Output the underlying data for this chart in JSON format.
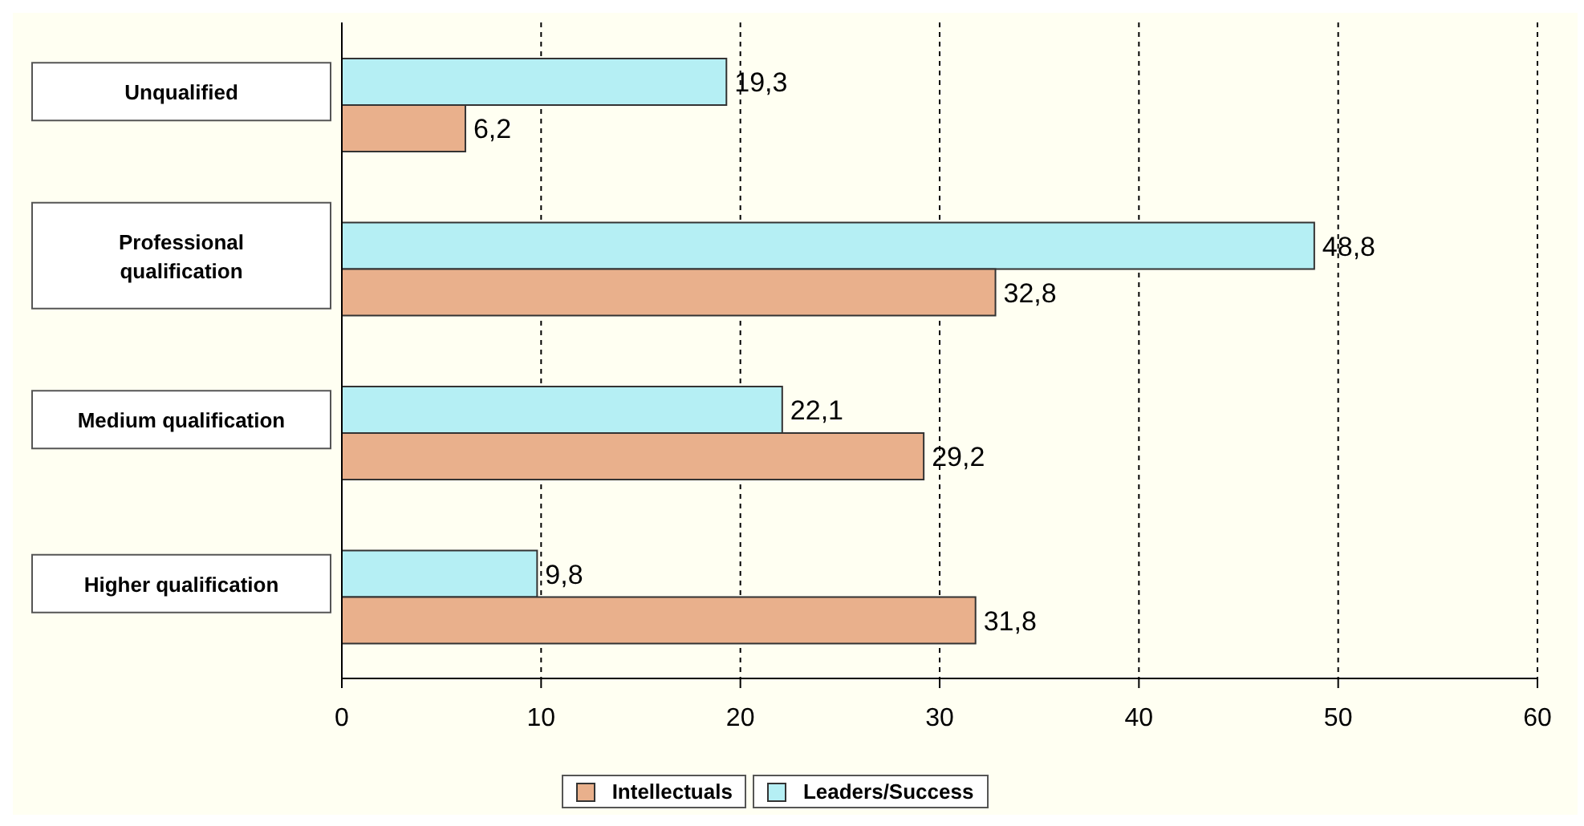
{
  "chart_data": {
    "type": "bar",
    "orientation": "horizontal",
    "categories": [
      "Unqualified",
      "Professional qualification",
      "Medium qualification",
      "Higher qualification"
    ],
    "series": [
      {
        "name": "Intellectuals",
        "color": "#e9b08c",
        "values": [
          6.2,
          32.8,
          29.2,
          31.8
        ],
        "value_labels": [
          "6,2",
          "32,8",
          "29,2",
          "31,8"
        ]
      },
      {
        "name": "Leaders/Success",
        "color": "#b5eff4",
        "values": [
          19.3,
          48.8,
          22.1,
          9.8
        ],
        "value_labels": [
          "19,3",
          "48,8",
          "22,1",
          "9,8"
        ]
      }
    ],
    "xlim": [
      0,
      60
    ],
    "xticks": [
      0,
      10,
      20,
      30,
      40,
      50,
      60
    ],
    "grid": "x",
    "legend": "bottom"
  }
}
